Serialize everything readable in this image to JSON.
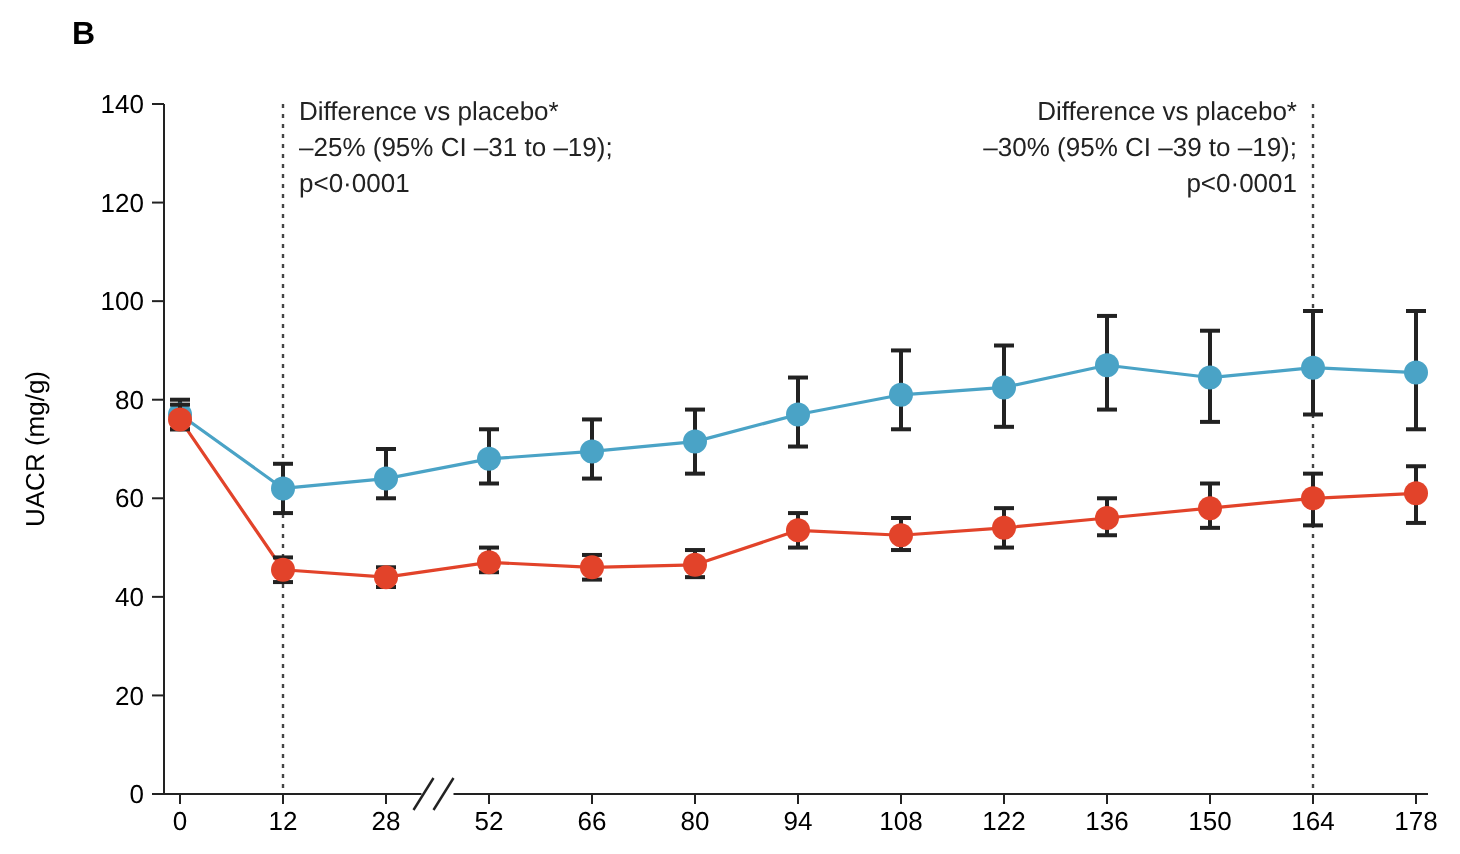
{
  "chart_data": {
    "type": "line",
    "title": "B",
    "ylabel": "UACR (mg/g)",
    "categories": [
      "0",
      "12",
      "28",
      "52",
      "66",
      "80",
      "94",
      "108",
      "122",
      "136",
      "150",
      "164",
      "178"
    ],
    "series": [
      {
        "color": "#4aa3c6",
        "values": [
          77,
          62,
          64,
          68,
          69.5,
          71.5,
          77,
          81,
          82.5,
          87,
          84.5,
          86.5,
          85.5
        ],
        "errors": [
          [
            74,
            80
          ],
          [
            57,
            67
          ],
          [
            60,
            70
          ],
          [
            63,
            74
          ],
          [
            64,
            76
          ],
          [
            65,
            78
          ],
          [
            70.5,
            84.5
          ],
          [
            74,
            90
          ],
          [
            74.5,
            91
          ],
          [
            78,
            97
          ],
          [
            75.5,
            94
          ],
          [
            77,
            98
          ],
          [
            74,
            98
          ]
        ]
      },
      {
        "color": "#e2432a",
        "values": [
          76,
          45.5,
          44,
          47,
          46,
          46.5,
          53.5,
          52.5,
          54,
          56,
          58,
          60,
          61
        ],
        "errors": [
          [
            74,
            79
          ],
          [
            43,
            48
          ],
          [
            42,
            46
          ],
          [
            45,
            50
          ],
          [
            43.5,
            48.5
          ],
          [
            44,
            49.5
          ],
          [
            50,
            57
          ],
          [
            49.5,
            56
          ],
          [
            50,
            58
          ],
          [
            52.5,
            60
          ],
          [
            54,
            63
          ],
          [
            54.5,
            65
          ],
          [
            55,
            66.5
          ]
        ]
      }
    ],
    "ylim": [
      0,
      140
    ],
    "yticks": [
      0,
      20,
      40,
      60,
      80,
      100,
      120,
      140
    ],
    "grid": false,
    "marker": "circle",
    "line_style": "solid",
    "ref_lines": [
      {
        "axis": "x",
        "value": "12",
        "line_style": "dotted"
      },
      {
        "axis": "x",
        "value": "164",
        "line_style": "dotted"
      }
    ],
    "annotations": [
      "Difference vs placebo*\n–25% (95% CI –31 to –19);\np<0·0001",
      "Difference vs placebo*\n–30% (95% CI –39 to –19);\np<0·0001"
    ]
  }
}
